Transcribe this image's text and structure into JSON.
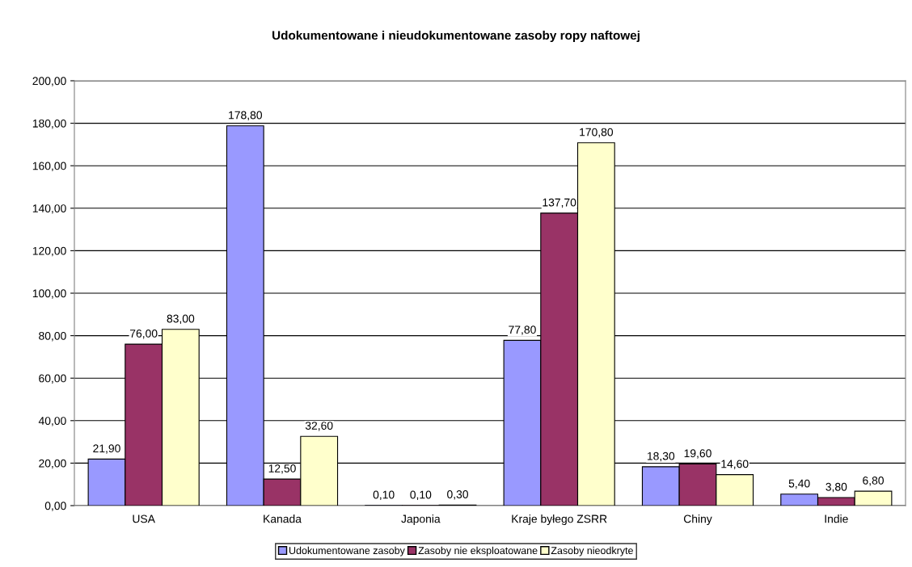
{
  "chart_data": {
    "type": "bar",
    "title": "Udokumentowane i nieudokumentowane zasoby ropy naftowej",
    "categories": [
      "USA",
      "Kanada",
      "Japonia",
      "Kraje byłego ZSRR",
      "Chiny",
      "Indie"
    ],
    "series": [
      {
        "name": "Udokumentowane zasoby",
        "color": "#9999ff",
        "values": [
          21.9,
          178.8,
          0.1,
          77.8,
          18.3,
          5.4
        ],
        "value_labels": [
          "21,90",
          "178,80",
          "0,10",
          "77,80",
          "18,30",
          "5,40"
        ]
      },
      {
        "name": "Zasoby nie eksploatowane",
        "color": "#993366",
        "values": [
          76.0,
          12.5,
          0.1,
          137.7,
          19.6,
          3.8
        ],
        "value_labels": [
          "76,00",
          "12,50",
          "0,10",
          "137,70",
          "19,60",
          "3,80"
        ]
      },
      {
        "name": "Zasoby nieodkryte",
        "color": "#ffffcc",
        "values": [
          83.0,
          32.6,
          0.3,
          170.8,
          14.6,
          6.8
        ],
        "value_labels": [
          "83,00",
          "32,60",
          "0,30",
          "170,80",
          "14,60",
          "6,80"
        ]
      }
    ],
    "ylim": [
      0,
      200
    ],
    "yticks": [
      {
        "value": 0,
        "label": "0,00"
      },
      {
        "value": 20,
        "label": "20,00"
      },
      {
        "value": 40,
        "label": "40,00"
      },
      {
        "value": 60,
        "label": "60,00"
      },
      {
        "value": 80,
        "label": "80,00"
      },
      {
        "value": 100,
        "label": "100,00"
      },
      {
        "value": 120,
        "label": "120,00"
      },
      {
        "value": 140,
        "label": "140,00"
      },
      {
        "value": 160,
        "label": "160,00"
      },
      {
        "value": 180,
        "label": "180,00"
      },
      {
        "value": 200,
        "label": "200,00"
      }
    ],
    "grid": "y",
    "legend": "bottom"
  }
}
